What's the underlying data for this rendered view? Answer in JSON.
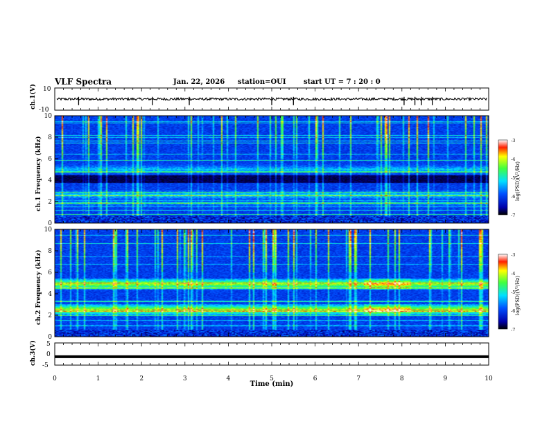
{
  "header": {
    "title": "VLF Spectra",
    "date": "Jan. 22, 2026",
    "station": "station=OUI",
    "start": "start  UT =   7 : 20 : 0"
  },
  "chart_data": [
    {
      "type": "line",
      "name": "ch1-waveform",
      "ylabel": "ch.1(V)",
      "ylim": [
        -10,
        10
      ],
      "yticks": [
        "10",
        "-10"
      ],
      "x": [
        0,
        10
      ],
      "baseline": 0,
      "spikes_min": [
        0.55,
        2.25,
        3.1,
        5.0,
        5.5,
        8.05,
        8.3,
        8.45,
        8.7
      ]
    },
    {
      "type": "heatmap",
      "name": "ch1-spectrogram",
      "ylabel": "ch.1 Frequency (kHz)",
      "ylim": [
        0,
        10
      ],
      "yticks": [
        "0",
        "2",
        "4",
        "6",
        "8",
        "10"
      ],
      "features": [
        {
          "label": "band ~5 kHz",
          "f": 5.0,
          "level": 0.42
        },
        {
          "label": "dark band ~4 kHz",
          "f": 4.1,
          "level": 0.0
        },
        {
          "label": "band ~2.5 kHz",
          "f": 2.6,
          "level": 0.45
        },
        {
          "label": "band ~1.8 kHz",
          "f": 1.8,
          "level": 0.35
        }
      ],
      "colorbar": {
        "label": "log(PSD)(V²/Hz)",
        "range": [
          -7,
          -3
        ],
        "ticks": [
          "-3",
          "-4",
          "-5",
          "-6",
          "-7"
        ]
      }
    },
    {
      "type": "heatmap",
      "name": "ch2-spectrogram",
      "ylabel": "ch.2 Frequency (kHz)",
      "ylim": [
        0,
        10
      ],
      "yticks": [
        "0",
        "2",
        "4",
        "6",
        "8",
        "10"
      ],
      "features": [
        {
          "label": "band ~5 kHz",
          "f": 4.9,
          "level": 0.7,
          "intense_from_min": 7.1,
          "intense_to_min": 8.2
        },
        {
          "label": "band ~2.5 kHz",
          "f": 2.5,
          "level": 0.7,
          "intense_from_min": 7.1,
          "intense_to_min": 8.2
        }
      ],
      "colorbar": {
        "label": "log(PSD)(V²/Hz)",
        "range": [
          -7,
          -3
        ],
        "ticks": [
          "-3",
          "-4",
          "-5",
          "-6",
          "-7"
        ]
      }
    },
    {
      "type": "line",
      "name": "ch3-waveform",
      "ylabel": "ch.3(V)",
      "ylim": [
        -5,
        5
      ],
      "yticks": [
        "5",
        "0",
        "-5"
      ],
      "x": [
        0,
        10
      ],
      "level": -1.2
    }
  ],
  "xaxis": {
    "label": "Time (min)",
    "ticks": [
      "0",
      "1",
      "2",
      "3",
      "4",
      "5",
      "6",
      "7",
      "8",
      "9",
      "10"
    ]
  }
}
